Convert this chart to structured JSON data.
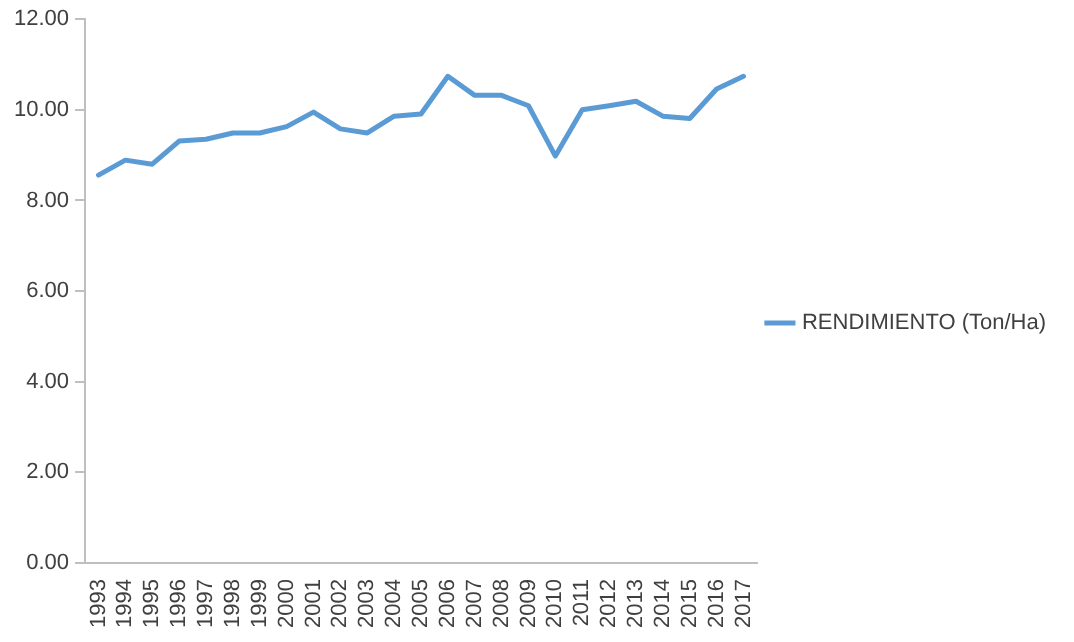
{
  "chart_data": {
    "type": "line",
    "categories": [
      "1993",
      "1994",
      "1995",
      "1996",
      "1997",
      "1998",
      "1999",
      "2000",
      "2001",
      "2002",
      "2003",
      "2004",
      "2005",
      "2006",
      "2007",
      "2008",
      "2009",
      "2010",
      "2011",
      "2012",
      "2013",
      "2014",
      "2015",
      "2016",
      "2017"
    ],
    "series": [
      {
        "name": "RENDIMIENTO (Ton/Ha)",
        "color": "#5b9bd5",
        "values": [
          8.56,
          8.89,
          8.8,
          9.31,
          9.35,
          9.49,
          9.49,
          9.63,
          9.95,
          9.58,
          9.49,
          9.86,
          9.91,
          10.74,
          10.32,
          10.32,
          10.09,
          8.98,
          10.0,
          10.09,
          10.19,
          9.86,
          9.81,
          10.46,
          10.74
        ]
      }
    ],
    "ylim": [
      0,
      12
    ],
    "yticks": [
      {
        "value": 0,
        "label": "0.00"
      },
      {
        "value": 2,
        "label": "2.00"
      },
      {
        "value": 4,
        "label": "4.00"
      },
      {
        "value": 6,
        "label": "6.00"
      },
      {
        "value": 8,
        "label": "8.00"
      },
      {
        "value": 10,
        "label": "10.00"
      },
      {
        "value": 12,
        "label": "12.00"
      }
    ],
    "grid": false,
    "legend": "right",
    "marker": "none",
    "line_style": "solid"
  }
}
